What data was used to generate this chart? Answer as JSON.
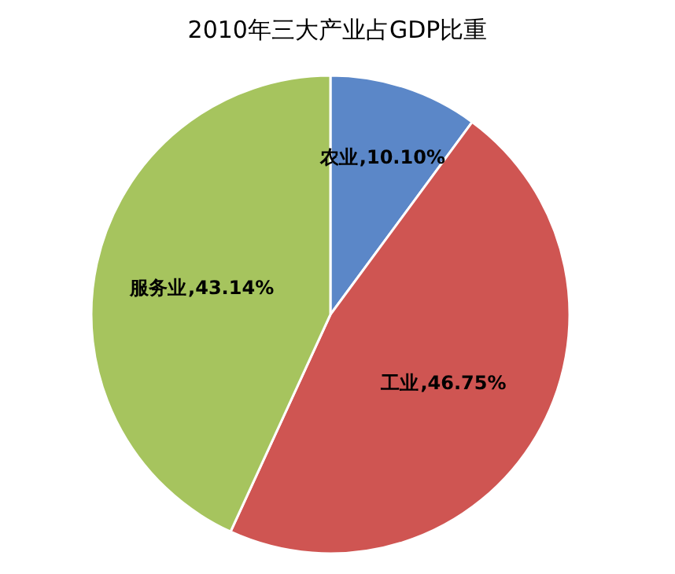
{
  "chart_data": {
    "type": "pie",
    "title": "2010年三大产业占GDP比重",
    "categories": [
      "农业",
      "工业",
      "服务业"
    ],
    "values": [
      10.1,
      46.75,
      43.14
    ],
    "colors": [
      "#5b87c8",
      "#cf5552",
      "#a6c45e"
    ],
    "value_labels": [
      ",10.10%",
      ",46.75%",
      ",43.14%"
    ]
  }
}
